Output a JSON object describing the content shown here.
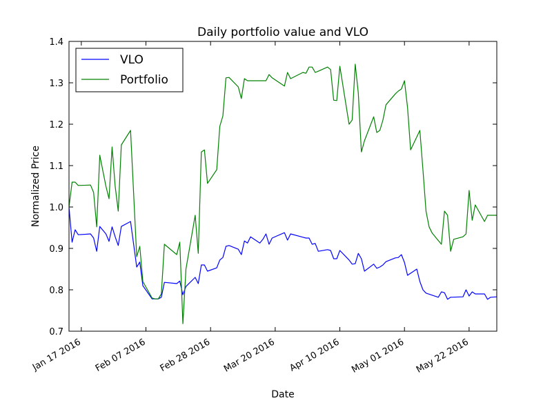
{
  "chart_data": {
    "type": "line",
    "title": "Daily portfolio value and VLO",
    "xlabel": "Date",
    "ylabel": "Normalized Price",
    "xlim": [
      "2016-01-13",
      "2016-05-31"
    ],
    "ylim": [
      0.7,
      1.4
    ],
    "y_ticks": [
      "0.7",
      "0.8",
      "0.9",
      "1.0",
      "1.1",
      "1.2",
      "1.3",
      "1.4"
    ],
    "x_ticks": [
      {
        "date": "2016-01-17",
        "label": "Jan 17 2016"
      },
      {
        "date": "2016-02-07",
        "label": "Feb 07 2016"
      },
      {
        "date": "2016-02-28",
        "label": "Feb 28 2016"
      },
      {
        "date": "2016-03-20",
        "label": "Mar 20 2016"
      },
      {
        "date": "2016-04-10",
        "label": "Apr 10 2016"
      },
      {
        "date": "2016-05-01",
        "label": "May 01 2016"
      },
      {
        "date": "2016-05-22",
        "label": "May 22 2016"
      }
    ],
    "legend_position": "top-left",
    "grid": false,
    "series": [
      {
        "name": "VLO",
        "color": "#0000ff",
        "points": [
          [
            "2016-01-13",
            1.0
          ],
          [
            "2016-01-14",
            0.915
          ],
          [
            "2016-01-15",
            0.945
          ],
          [
            "2016-01-16",
            0.933
          ],
          [
            "2016-01-20",
            0.935
          ],
          [
            "2016-01-21",
            0.925
          ],
          [
            "2016-01-22",
            0.893
          ],
          [
            "2016-01-23",
            0.953
          ],
          [
            "2016-01-25",
            0.935
          ],
          [
            "2016-01-26",
            0.917
          ],
          [
            "2016-01-27",
            0.952
          ],
          [
            "2016-01-28",
            0.928
          ],
          [
            "2016-01-29",
            0.907
          ],
          [
            "2016-01-30",
            0.953
          ],
          [
            "2016-02-02",
            0.965
          ],
          [
            "2016-02-04",
            0.855
          ],
          [
            "2016-02-05",
            0.867
          ],
          [
            "2016-02-06",
            0.81
          ],
          [
            "2016-02-09",
            0.778
          ],
          [
            "2016-02-10",
            0.778
          ],
          [
            "2016-02-11",
            0.778
          ],
          [
            "2016-02-12",
            0.782
          ],
          [
            "2016-02-13",
            0.818
          ],
          [
            "2016-02-17",
            0.815
          ],
          [
            "2016-02-18",
            0.821
          ],
          [
            "2016-02-19",
            0.788
          ],
          [
            "2016-02-20",
            0.808
          ],
          [
            "2016-02-23",
            0.83
          ],
          [
            "2016-02-24",
            0.815
          ],
          [
            "2016-02-25",
            0.86
          ],
          [
            "2016-02-26",
            0.86
          ],
          [
            "2016-02-27",
            0.845
          ],
          [
            "2016-03-01",
            0.853
          ],
          [
            "2016-03-02",
            0.872
          ],
          [
            "2016-03-03",
            0.878
          ],
          [
            "2016-03-04",
            0.905
          ],
          [
            "2016-03-05",
            0.907
          ],
          [
            "2016-03-08",
            0.898
          ],
          [
            "2016-03-09",
            0.885
          ],
          [
            "2016-03-10",
            0.918
          ],
          [
            "2016-03-11",
            0.913
          ],
          [
            "2016-03-12",
            0.928
          ],
          [
            "2016-03-15",
            0.913
          ],
          [
            "2016-03-16",
            0.922
          ],
          [
            "2016-03-17",
            0.935
          ],
          [
            "2016-03-18",
            0.91
          ],
          [
            "2016-03-19",
            0.925
          ],
          [
            "2016-03-23",
            0.938
          ],
          [
            "2016-03-24",
            0.92
          ],
          [
            "2016-03-25",
            0.935
          ],
          [
            "2016-03-29",
            0.927
          ],
          [
            "2016-03-30",
            0.925
          ],
          [
            "2016-03-31",
            0.925
          ],
          [
            "2016-04-01",
            0.91
          ],
          [
            "2016-04-02",
            0.912
          ],
          [
            "2016-04-03",
            0.893
          ],
          [
            "2016-04-06",
            0.897
          ],
          [
            "2016-04-07",
            0.895
          ],
          [
            "2016-04-08",
            0.875
          ],
          [
            "2016-04-09",
            0.875
          ],
          [
            "2016-04-10",
            0.895
          ],
          [
            "2016-04-13",
            0.872
          ],
          [
            "2016-04-14",
            0.862
          ],
          [
            "2016-04-15",
            0.863
          ],
          [
            "2016-04-16",
            0.888
          ],
          [
            "2016-04-17",
            0.875
          ],
          [
            "2016-04-18",
            0.845
          ],
          [
            "2016-04-21",
            0.862
          ],
          [
            "2016-04-22",
            0.852
          ],
          [
            "2016-04-23",
            0.855
          ],
          [
            "2016-04-24",
            0.86
          ],
          [
            "2016-04-25",
            0.868
          ],
          [
            "2016-04-28",
            0.877
          ],
          [
            "2016-04-29",
            0.878
          ],
          [
            "2016-04-30",
            0.885
          ],
          [
            "2016-05-01",
            0.866
          ],
          [
            "2016-05-02",
            0.835
          ],
          [
            "2016-05-05",
            0.85
          ],
          [
            "2016-05-06",
            0.82
          ],
          [
            "2016-05-07",
            0.8
          ],
          [
            "2016-05-08",
            0.792
          ],
          [
            "2016-05-12",
            0.782
          ],
          [
            "2016-05-13",
            0.795
          ],
          [
            "2016-05-14",
            0.793
          ],
          [
            "2016-05-15",
            0.777
          ],
          [
            "2016-05-16",
            0.782
          ],
          [
            "2016-05-20",
            0.783
          ],
          [
            "2016-05-21",
            0.8
          ],
          [
            "2016-05-22",
            0.785
          ],
          [
            "2016-05-23",
            0.795
          ],
          [
            "2016-05-24",
            0.79
          ],
          [
            "2016-05-27",
            0.79
          ],
          [
            "2016-05-28",
            0.777
          ],
          [
            "2016-05-29",
            0.782
          ],
          [
            "2016-05-31",
            0.783
          ],
          [
            "2016-06-01",
            0.785
          ],
          [
            "2016-06-02",
            0.795
          ]
        ]
      },
      {
        "name": "Portfolio",
        "color": "#008000",
        "points": [
          [
            "2016-01-13",
            1.0
          ],
          [
            "2016-01-14",
            1.06
          ],
          [
            "2016-01-15",
            1.06
          ],
          [
            "2016-01-16",
            1.052
          ],
          [
            "2016-01-20",
            1.053
          ],
          [
            "2016-01-21",
            1.035
          ],
          [
            "2016-01-22",
            0.952
          ],
          [
            "2016-01-23",
            1.125
          ],
          [
            "2016-01-25",
            1.05
          ],
          [
            "2016-01-26",
            1.02
          ],
          [
            "2016-01-27",
            1.145
          ],
          [
            "2016-01-28",
            1.05
          ],
          [
            "2016-01-29",
            0.99
          ],
          [
            "2016-01-30",
            1.15
          ],
          [
            "2016-02-02",
            1.185
          ],
          [
            "2016-02-04",
            0.88
          ],
          [
            "2016-02-05",
            0.905
          ],
          [
            "2016-02-06",
            0.82
          ],
          [
            "2016-02-09",
            0.78
          ],
          [
            "2016-02-10",
            0.778
          ],
          [
            "2016-02-11",
            0.778
          ],
          [
            "2016-02-12",
            0.79
          ],
          [
            "2016-02-13",
            0.91
          ],
          [
            "2016-02-17",
            0.885
          ],
          [
            "2016-02-18",
            0.915
          ],
          [
            "2016-02-19",
            0.718
          ],
          [
            "2016-02-20",
            0.85
          ],
          [
            "2016-02-23",
            0.98
          ],
          [
            "2016-02-24",
            0.888
          ],
          [
            "2016-02-25",
            1.133
          ],
          [
            "2016-02-26",
            1.138
          ],
          [
            "2016-02-27",
            1.057
          ],
          [
            "2016-03-01",
            1.09
          ],
          [
            "2016-03-02",
            1.195
          ],
          [
            "2016-03-03",
            1.22
          ],
          [
            "2016-03-04",
            1.312
          ],
          [
            "2016-03-05",
            1.313
          ],
          [
            "2016-03-08",
            1.29
          ],
          [
            "2016-03-09",
            1.262
          ],
          [
            "2016-03-10",
            1.31
          ],
          [
            "2016-03-11",
            1.305
          ],
          [
            "2016-03-12",
            1.305
          ],
          [
            "2016-03-15",
            1.305
          ],
          [
            "2016-03-16",
            1.305
          ],
          [
            "2016-03-17",
            1.305
          ],
          [
            "2016-03-18",
            1.32
          ],
          [
            "2016-03-19",
            1.312
          ],
          [
            "2016-03-23",
            1.292
          ],
          [
            "2016-03-24",
            1.325
          ],
          [
            "2016-03-25",
            1.31
          ],
          [
            "2016-03-29",
            1.325
          ],
          [
            "2016-03-30",
            1.323
          ],
          [
            "2016-03-31",
            1.338
          ],
          [
            "2016-04-01",
            1.338
          ],
          [
            "2016-04-02",
            1.325
          ],
          [
            "2016-04-03",
            1.328
          ],
          [
            "2016-04-06",
            1.338
          ],
          [
            "2016-04-07",
            1.332
          ],
          [
            "2016-04-08",
            1.258
          ],
          [
            "2016-04-09",
            1.257
          ],
          [
            "2016-04-10",
            1.34
          ],
          [
            "2016-04-13",
            1.2
          ],
          [
            "2016-04-14",
            1.21
          ],
          [
            "2016-04-15",
            1.345
          ],
          [
            "2016-04-16",
            1.275
          ],
          [
            "2016-04-17",
            1.133
          ],
          [
            "2016-04-18",
            1.16
          ],
          [
            "2016-04-21",
            1.218
          ],
          [
            "2016-04-22",
            1.18
          ],
          [
            "2016-04-23",
            1.185
          ],
          [
            "2016-04-24",
            1.21
          ],
          [
            "2016-04-25",
            1.247
          ],
          [
            "2016-04-28",
            1.273
          ],
          [
            "2016-04-29",
            1.28
          ],
          [
            "2016-04-30",
            1.285
          ],
          [
            "2016-05-01",
            1.305
          ],
          [
            "2016-05-02",
            1.24
          ],
          [
            "2016-05-03",
            1.138
          ],
          [
            "2016-05-06",
            1.185
          ],
          [
            "2016-05-07",
            1.09
          ],
          [
            "2016-05-08",
            0.99
          ],
          [
            "2016-05-09",
            0.952
          ],
          [
            "2016-05-10",
            0.937
          ],
          [
            "2016-05-13",
            0.91
          ],
          [
            "2016-05-14",
            0.99
          ],
          [
            "2016-05-15",
            0.98
          ],
          [
            "2016-05-16",
            0.893
          ],
          [
            "2016-05-17",
            0.922
          ],
          [
            "2016-05-20",
            0.928
          ],
          [
            "2016-05-21",
            0.935
          ],
          [
            "2016-05-22",
            1.04
          ],
          [
            "2016-05-23",
            0.968
          ],
          [
            "2016-05-24",
            1.005
          ],
          [
            "2016-05-27",
            0.965
          ],
          [
            "2016-05-28",
            0.98
          ],
          [
            "2016-05-29",
            0.98
          ],
          [
            "2016-05-31",
            0.98
          ],
          [
            "2016-06-01",
            0.98
          ],
          [
            "2016-06-02",
            0.98
          ]
        ]
      }
    ]
  }
}
